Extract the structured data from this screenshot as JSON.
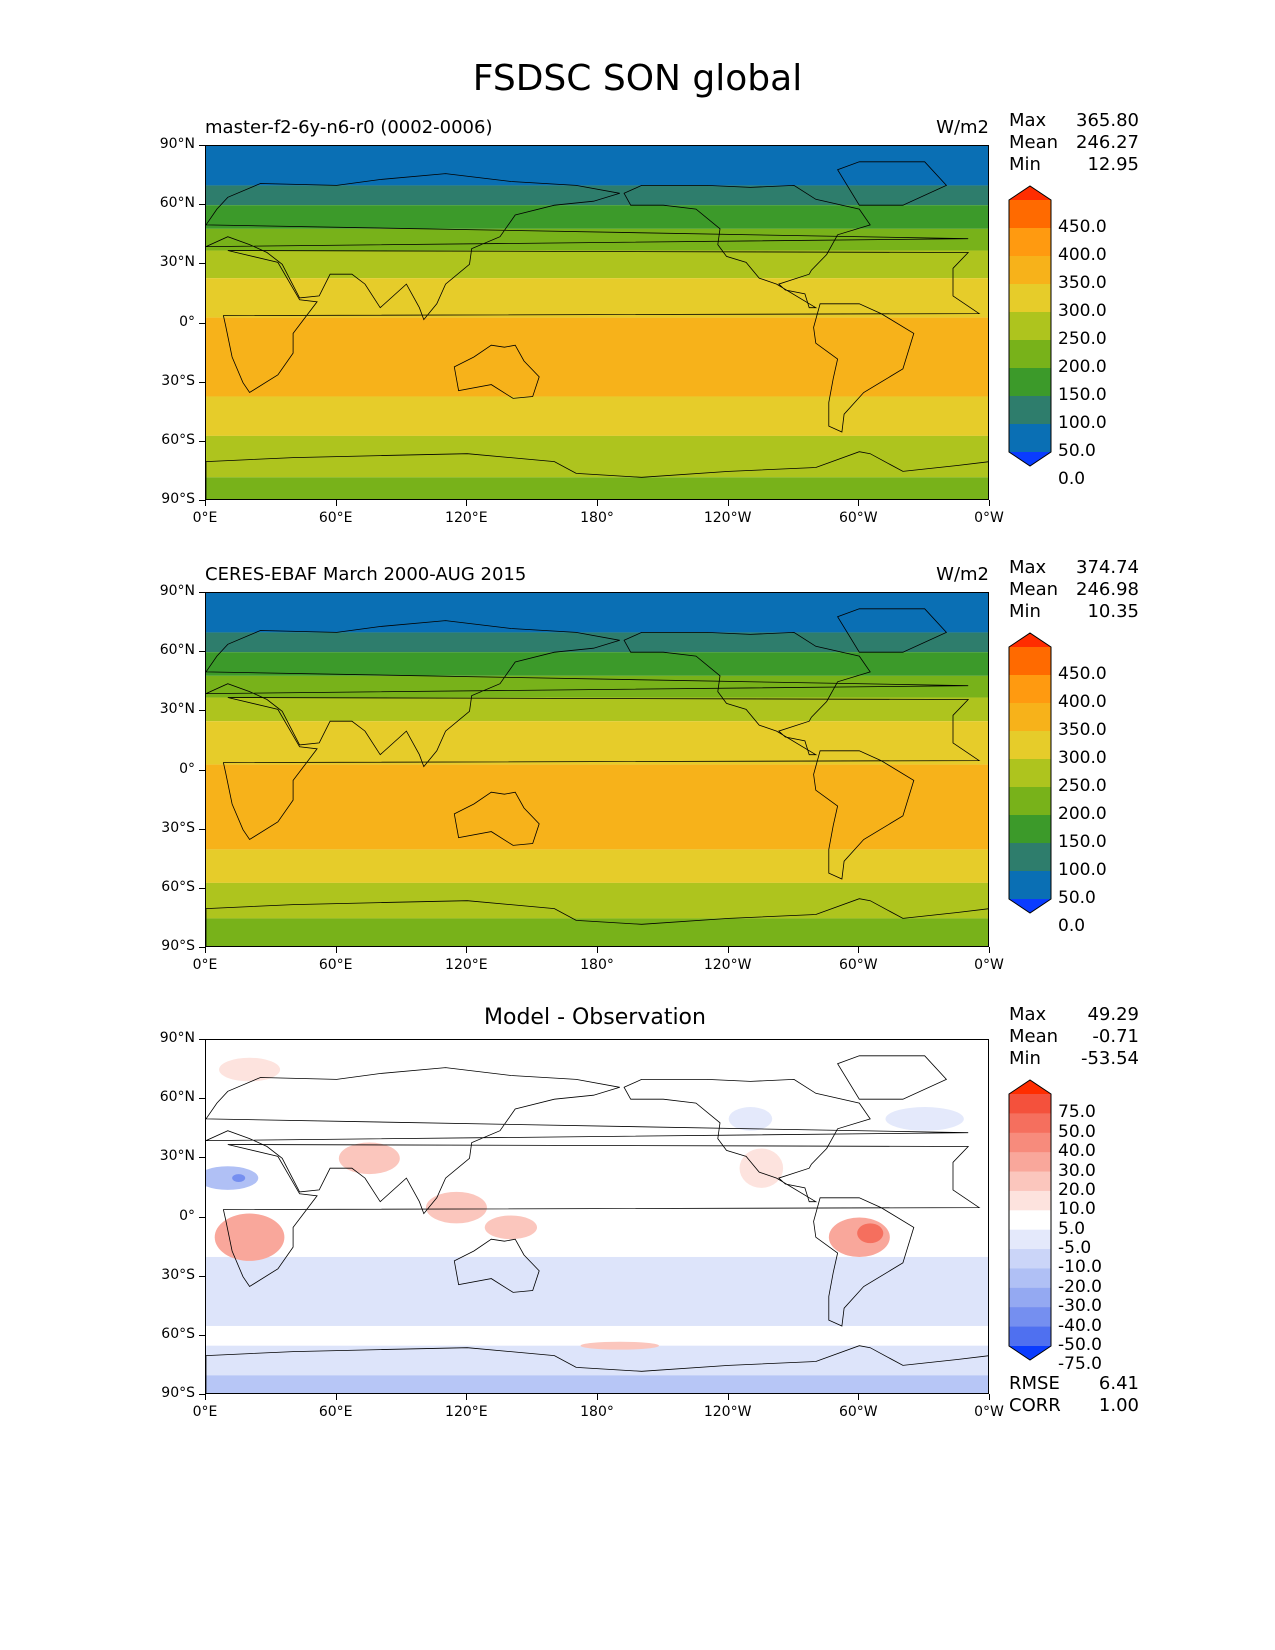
{
  "figure_title": "FSDSC SON global",
  "axes": {
    "lat_ticks": [
      "90°N",
      "60°N",
      "30°N",
      "0°",
      "30°S",
      "60°S",
      "90°S"
    ],
    "lon_ticks": [
      "0°E",
      "60°E",
      "120°E",
      "180°",
      "120°W",
      "60°W",
      "0°W"
    ]
  },
  "panels": [
    {
      "title_left": "master-f2-6y-n6-r0 (0002-0006)",
      "title_center": "",
      "units": "W/m2",
      "stats": [
        {
          "label": "Max",
          "value": "365.80"
        },
        {
          "label": "Mean",
          "value": "246.27"
        },
        {
          "label": "Min",
          "value": "12.95"
        }
      ],
      "colorbar": {
        "labels": [
          "450.0",
          "400.0",
          "350.0",
          "300.0",
          "250.0",
          "200.0",
          "150.0",
          "100.0",
          "50.0",
          "0.0"
        ],
        "colors": [
          "#ff2d00",
          "#ff6a00",
          "#ff9a10",
          "#f7b21a",
          "#e6cc2a",
          "#aec41e",
          "#78b21a",
          "#3c9a2a",
          "#2e7d6c",
          "#0a6fb4",
          "#0a3cff"
        ]
      },
      "lat_bands": [
        {
          "lat_from": 90,
          "lat_to": 70,
          "color": "#0a6fb4"
        },
        {
          "lat_from": 70,
          "lat_to": 60,
          "color": "#2e7d6c"
        },
        {
          "lat_from": 60,
          "lat_to": 48,
          "color": "#3c9a2a"
        },
        {
          "lat_from": 48,
          "lat_to": 37,
          "color": "#78b21a"
        },
        {
          "lat_from": 37,
          "lat_to": 23,
          "color": "#aec41e"
        },
        {
          "lat_from": 23,
          "lat_to": 3,
          "color": "#e6cc2a"
        },
        {
          "lat_from": 3,
          "lat_to": -37,
          "color": "#f7b21a"
        },
        {
          "lat_from": -37,
          "lat_to": -57,
          "color": "#e6cc2a"
        },
        {
          "lat_from": -57,
          "lat_to": -78,
          "color": "#aec41e"
        },
        {
          "lat_from": -78,
          "lat_to": -90,
          "color": "#78b21a"
        }
      ]
    },
    {
      "title_left": "CERES-EBAF March 2000-AUG 2015",
      "title_center": "",
      "units": "W/m2",
      "stats": [
        {
          "label": "Max",
          "value": "374.74"
        },
        {
          "label": "Mean",
          "value": "246.98"
        },
        {
          "label": "Min",
          "value": "10.35"
        }
      ],
      "colorbar": {
        "labels": [
          "450.0",
          "400.0",
          "350.0",
          "300.0",
          "250.0",
          "200.0",
          "150.0",
          "100.0",
          "50.0",
          "0.0"
        ],
        "colors": [
          "#ff2d00",
          "#ff6a00",
          "#ff9a10",
          "#f7b21a",
          "#e6cc2a",
          "#aec41e",
          "#78b21a",
          "#3c9a2a",
          "#2e7d6c",
          "#0a6fb4",
          "#0a3cff"
        ]
      },
      "lat_bands": [
        {
          "lat_from": 90,
          "lat_to": 70,
          "color": "#0a6fb4"
        },
        {
          "lat_from": 70,
          "lat_to": 60,
          "color": "#2e7d6c"
        },
        {
          "lat_from": 60,
          "lat_to": 48,
          "color": "#3c9a2a"
        },
        {
          "lat_from": 48,
          "lat_to": 37,
          "color": "#78b21a"
        },
        {
          "lat_from": 37,
          "lat_to": 25,
          "color": "#aec41e"
        },
        {
          "lat_from": 25,
          "lat_to": 3,
          "color": "#e6cc2a"
        },
        {
          "lat_from": 3,
          "lat_to": -40,
          "color": "#f7b21a"
        },
        {
          "lat_from": -40,
          "lat_to": -57,
          "color": "#e6cc2a"
        },
        {
          "lat_from": -57,
          "lat_to": -75,
          "color": "#aec41e"
        },
        {
          "lat_from": -75,
          "lat_to": -90,
          "color": "#78b21a"
        }
      ]
    },
    {
      "title_left": "",
      "title_center": "Model - Observation",
      "units": "",
      "stats": [
        {
          "label": "Max",
          "value": "49.29"
        },
        {
          "label": "Mean",
          "value": "-0.71"
        },
        {
          "label": "Min",
          "value": "-53.54"
        }
      ],
      "extra_stats": [
        {
          "label": "RMSE",
          "value": "6.41"
        },
        {
          "label": "CORR",
          "value": "1.00"
        }
      ],
      "colorbar": {
        "labels": [
          "75.0",
          "50.0",
          "40.0",
          "30.0",
          "20.0",
          "10.0",
          "5.0",
          "-5.0",
          "-10.0",
          "-20.0",
          "-30.0",
          "-40.0",
          "-50.0",
          "-75.0"
        ],
        "colors": [
          "#ff2d00",
          "#f4513c",
          "#f56f5e",
          "#f78b7c",
          "#f9a79b",
          "#fbc6bd",
          "#fde3de",
          "#ffffff",
          "#e4e9fb",
          "#cbd5f8",
          "#b0c0f5",
          "#94a9f2",
          "#758ff0",
          "#4f70f0",
          "#0a3cff"
        ]
      },
      "lat_bands": [
        {
          "lat_from": 90,
          "lat_to": -20,
          "color": "#ffffff"
        },
        {
          "lat_from": -20,
          "lat_to": -55,
          "color": "#dde4fa"
        },
        {
          "lat_from": -55,
          "lat_to": -65,
          "color": "#ffffff"
        },
        {
          "lat_from": -65,
          "lat_to": -80,
          "color": "#dde4fa"
        },
        {
          "lat_from": -80,
          "lat_to": -90,
          "color": "#b7c6f6"
        }
      ]
    }
  ]
}
